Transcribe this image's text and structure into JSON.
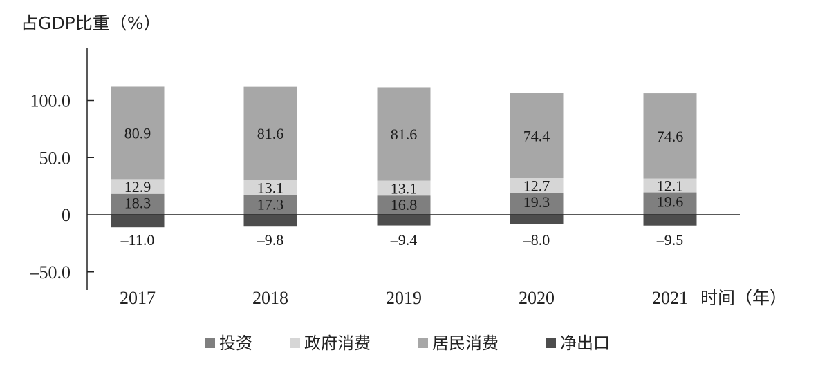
{
  "chart_data": {
    "type": "bar",
    "stacked": true,
    "ylabel": "占GDP比重（%）",
    "xlabel": "时间（年）",
    "categories": [
      "2017",
      "2018",
      "2019",
      "2020",
      "2021"
    ],
    "series": [
      {
        "name": "投资",
        "color": "#7f7f7f",
        "values": [
          18.3,
          17.3,
          16.8,
          19.3,
          19.6
        ]
      },
      {
        "name": "政府消费",
        "color": "#d6d6d6",
        "values": [
          12.9,
          13.1,
          13.1,
          12.7,
          12.1
        ]
      },
      {
        "name": "居民消费",
        "color": "#a7a7a7",
        "values": [
          80.9,
          81.6,
          81.6,
          74.4,
          74.6
        ]
      },
      {
        "name": "净出口",
        "color": "#4d4d4d",
        "values": [
          -11.0,
          -9.8,
          -9.4,
          -8.0,
          -9.5
        ]
      }
    ],
    "value_labels": {
      "投资": [
        "18.3",
        "17.3",
        "16.8",
        "19.3",
        "19.6"
      ],
      "政府消费": [
        "12.9",
        "13.1",
        "13.1",
        "12.7",
        "12.1"
      ],
      "居民消费": [
        "80.9",
        "81.6",
        "81.6",
        "74.4",
        "74.6"
      ],
      "净出口": [
        "–11.0",
        "–9.8",
        "–9.4",
        "–8.0",
        "–9.5"
      ]
    },
    "yticks": [
      {
        "value": 100,
        "label": "100.0"
      },
      {
        "value": 50,
        "label": "50.0"
      },
      {
        "value": 0,
        "label": "0"
      },
      {
        "value": -50,
        "label": "–50.0"
      }
    ],
    "ylim": [
      -66,
      146
    ],
    "grid": false,
    "legend_position": "bottom"
  }
}
